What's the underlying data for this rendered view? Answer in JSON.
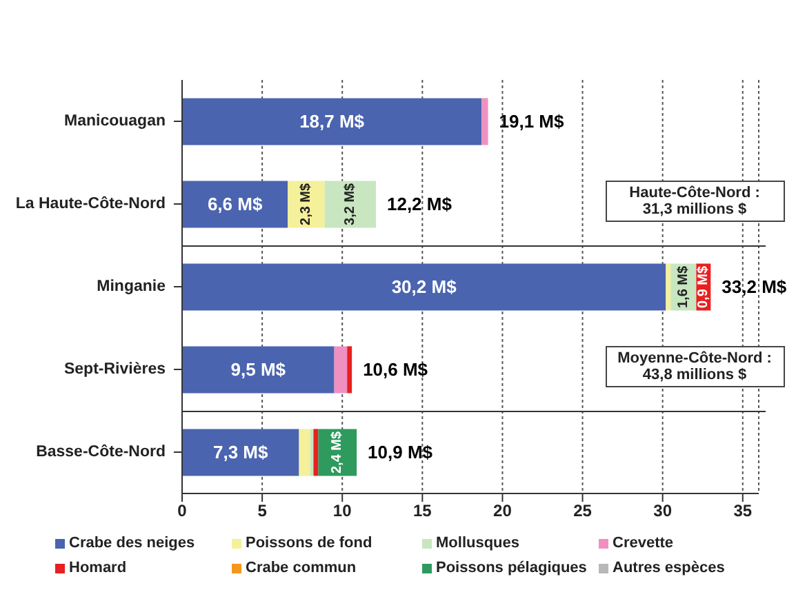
{
  "chart_data": {
    "type": "bar",
    "orientation": "horizontal",
    "stacked": true,
    "categories": [
      "Manicouagan",
      "La Haute-Côte-Nord",
      "Minganie",
      "Sept-Rivières",
      "Basse-Côte-Nord"
    ],
    "series": [
      {
        "name": "Crabe des neiges",
        "color": "#4a64b0",
        "values": [
          18.7,
          6.6,
          30.2,
          9.5,
          7.3
        ],
        "value_labels": [
          "18,7 M$",
          "6,6 M$",
          "30,2 M$",
          "9,5 M$",
          "7,3 M$"
        ]
      },
      {
        "name": "Poissons de fond",
        "color": "#f5f09a",
        "values": [
          null,
          2.3,
          0.3,
          null,
          0.7
        ],
        "value_labels": [
          null,
          "2,3 M$",
          null,
          null,
          null
        ]
      },
      {
        "name": "Mollusques",
        "color": "#c8e6c0",
        "values": [
          null,
          3.2,
          1.6,
          null,
          0.2
        ],
        "value_labels": [
          null,
          "3,2 M$",
          "1,6 M$",
          null,
          null
        ]
      },
      {
        "name": "Crevette",
        "color": "#f090c0",
        "values": [
          0.4,
          null,
          null,
          0.8,
          null
        ],
        "value_labels": [
          null,
          null,
          null,
          null,
          null
        ]
      },
      {
        "name": "Homard",
        "color": "#e82020",
        "values": [
          null,
          null,
          0.9,
          0.3,
          0.3
        ],
        "value_labels": [
          null,
          null,
          "0,9 M$",
          null,
          null
        ]
      },
      {
        "name": "Crabe commun",
        "color": "#f5961e",
        "values": [
          null,
          null,
          null,
          null,
          null
        ]
      },
      {
        "name": "Poissons pélagiques",
        "color": "#2e9a5e",
        "values": [
          null,
          null,
          null,
          null,
          2.4
        ],
        "value_labels": [
          null,
          null,
          null,
          null,
          "2,4 M$"
        ]
      },
      {
        "name": "Autres espèces",
        "color": "#b8b8b8",
        "values": [
          null,
          null,
          null,
          null,
          null
        ]
      }
    ],
    "totals": [
      "19,1 M$",
      "12,2 M$",
      "33,2 M$",
      "10,6 M$",
      "10,9 M$"
    ],
    "xlim": [
      0,
      36
    ],
    "xticks": [
      0,
      5,
      10,
      15,
      20,
      25,
      30,
      35
    ],
    "grid": "x",
    "legend": "bottom",
    "annotations": [
      "Haute-Côte-Nord :\n31,3 millions $",
      "Moyenne-Côte-Nord :\n43,8 millions $"
    ]
  }
}
